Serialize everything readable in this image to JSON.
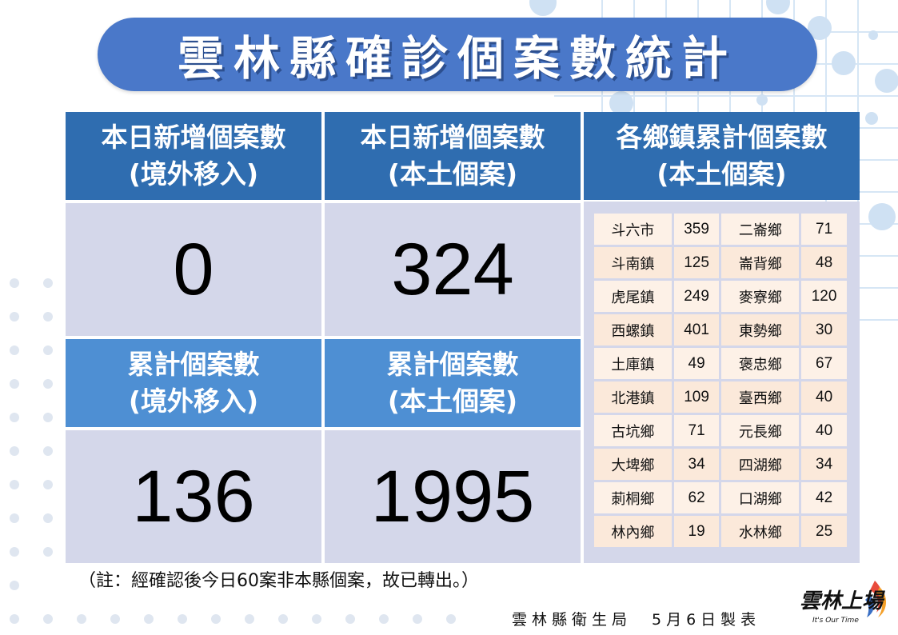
{
  "title": "雲林縣確診個案數統計",
  "headers": {
    "daily_imported": [
      "本日新增個案數",
      "(境外移入)"
    ],
    "daily_local": [
      "本日新增個案數",
      "(本土個案)"
    ],
    "town_cumulative": [
      "各鄉鎮累計個案數",
      "(本土個案)"
    ],
    "cumulative_imported": [
      "累計個案數",
      "(境外移入)"
    ],
    "cumulative_local": [
      "累計個案數",
      "(本土個案)"
    ]
  },
  "values": {
    "daily_imported": "0",
    "daily_local": "324",
    "cumulative_imported": "136",
    "cumulative_local": "1995"
  },
  "towns": [
    [
      "斗六市",
      "359",
      "二崙鄉",
      "71"
    ],
    [
      "斗南鎮",
      "125",
      "崙背鄉",
      "48"
    ],
    [
      "虎尾鎮",
      "249",
      "麥寮鄉",
      "120"
    ],
    [
      "西螺鎮",
      "401",
      "東勢鄉",
      "30"
    ],
    [
      "土庫鎮",
      "49",
      "褒忠鄉",
      "67"
    ],
    [
      "北港鎮",
      "109",
      "臺西鄉",
      "40"
    ],
    [
      "古坑鄉",
      "71",
      "元長鄉",
      "40"
    ],
    [
      "大埤鄉",
      "34",
      "四湖鄉",
      "34"
    ],
    [
      "莿桐鄉",
      "62",
      "口湖鄉",
      "42"
    ],
    [
      "林內鄉",
      "19",
      "水林鄉",
      "25"
    ]
  ],
  "footnote": "（註：經確認後今日60案非本縣個案，故已轉出。）",
  "producer": "雲林縣衛生局　5月6日製表",
  "logo": {
    "text": "雲林上場",
    "slogan": "It's Our Time"
  },
  "colors": {
    "banner": "#4a78c9",
    "header_dark": "#2f6db0",
    "header_light": "#4e8fd3",
    "value_bg": "#d4d7ea",
    "town_cell": "#fbe9da"
  }
}
